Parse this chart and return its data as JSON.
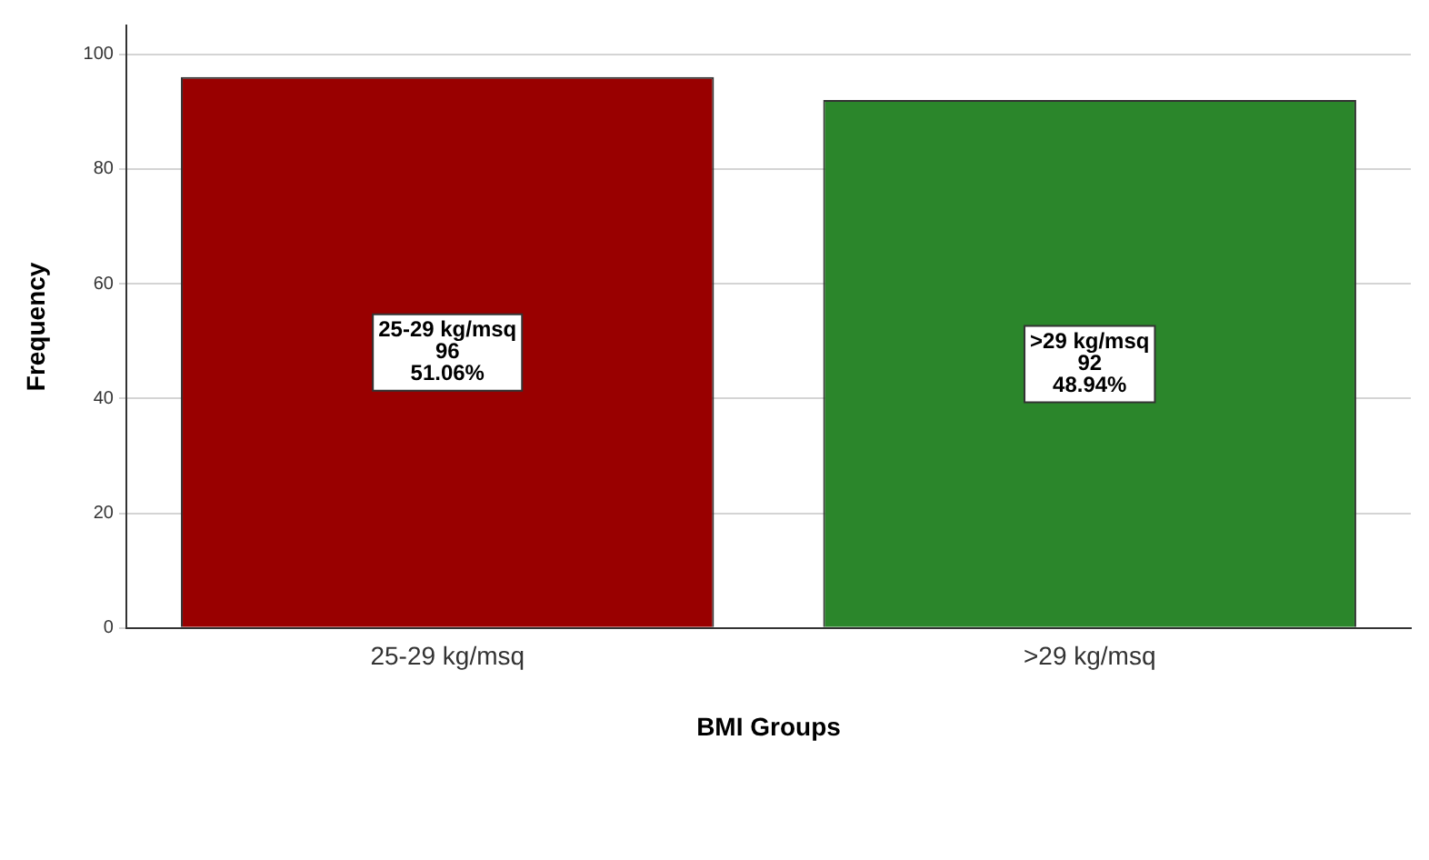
{
  "chart_data": {
    "type": "bar",
    "xlabel": "BMI Groups",
    "ylabel": "Frequency",
    "categories": [
      "25-29 kg/msq",
      ">29 kg/msq"
    ],
    "values": [
      96,
      92
    ],
    "colors": [
      "#990000",
      "#2b862b"
    ],
    "value_labels": [
      "25-29 kg/msq\n96\n51.06%",
      ">29 kg/msq\n92\n48.94%"
    ],
    "ylim": [
      0,
      105
    ],
    "yticks": [
      0,
      20,
      40,
      60,
      80,
      100
    ],
    "grid": "y",
    "legend": false
  }
}
